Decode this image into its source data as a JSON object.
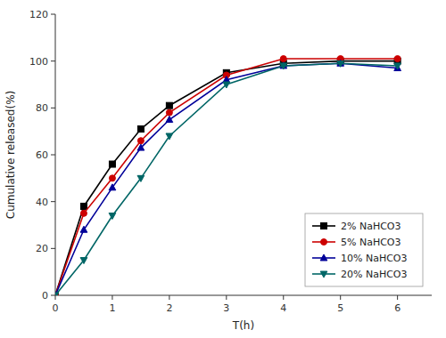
{
  "chart_data": {
    "type": "line",
    "xlabel": "T(h)",
    "ylabel": "Cumulative released(%)",
    "x": [
      0,
      0.5,
      1,
      1.5,
      2,
      3,
      4,
      5,
      6
    ],
    "series": [
      {
        "name": "2% NaHCO3",
        "color": "#000000",
        "marker": "square",
        "line_style": "solid",
        "values": [
          0,
          38,
          56,
          71,
          81,
          95,
          99,
          100,
          100
        ]
      },
      {
        "name": "5% NaHCO3",
        "color": "#cc0000",
        "marker": "circle",
        "line_style": "solid",
        "values": [
          0,
          35,
          50,
          66,
          78,
          94,
          101,
          101,
          101
        ]
      },
      {
        "name": "10% NaHCO3",
        "color": "#000099",
        "marker": "triangle-up",
        "line_style": "solid",
        "values": [
          0,
          28,
          46,
          63,
          75,
          92,
          98,
          99,
          97
        ]
      },
      {
        "name": "20% NaHCO3",
        "color": "#006666",
        "marker": "triangle-down",
        "line_style": "solid",
        "values": [
          0,
          15,
          34,
          50,
          68,
          90,
          98,
          99,
          98
        ]
      }
    ],
    "xlim": [
      0,
      6.6
    ],
    "ylim": [
      0,
      120
    ],
    "xticks": [
      0,
      1,
      2,
      3,
      4,
      5,
      6
    ],
    "yticks": [
      0,
      20,
      40,
      60,
      80,
      100,
      120
    ],
    "legend": "lower right"
  }
}
